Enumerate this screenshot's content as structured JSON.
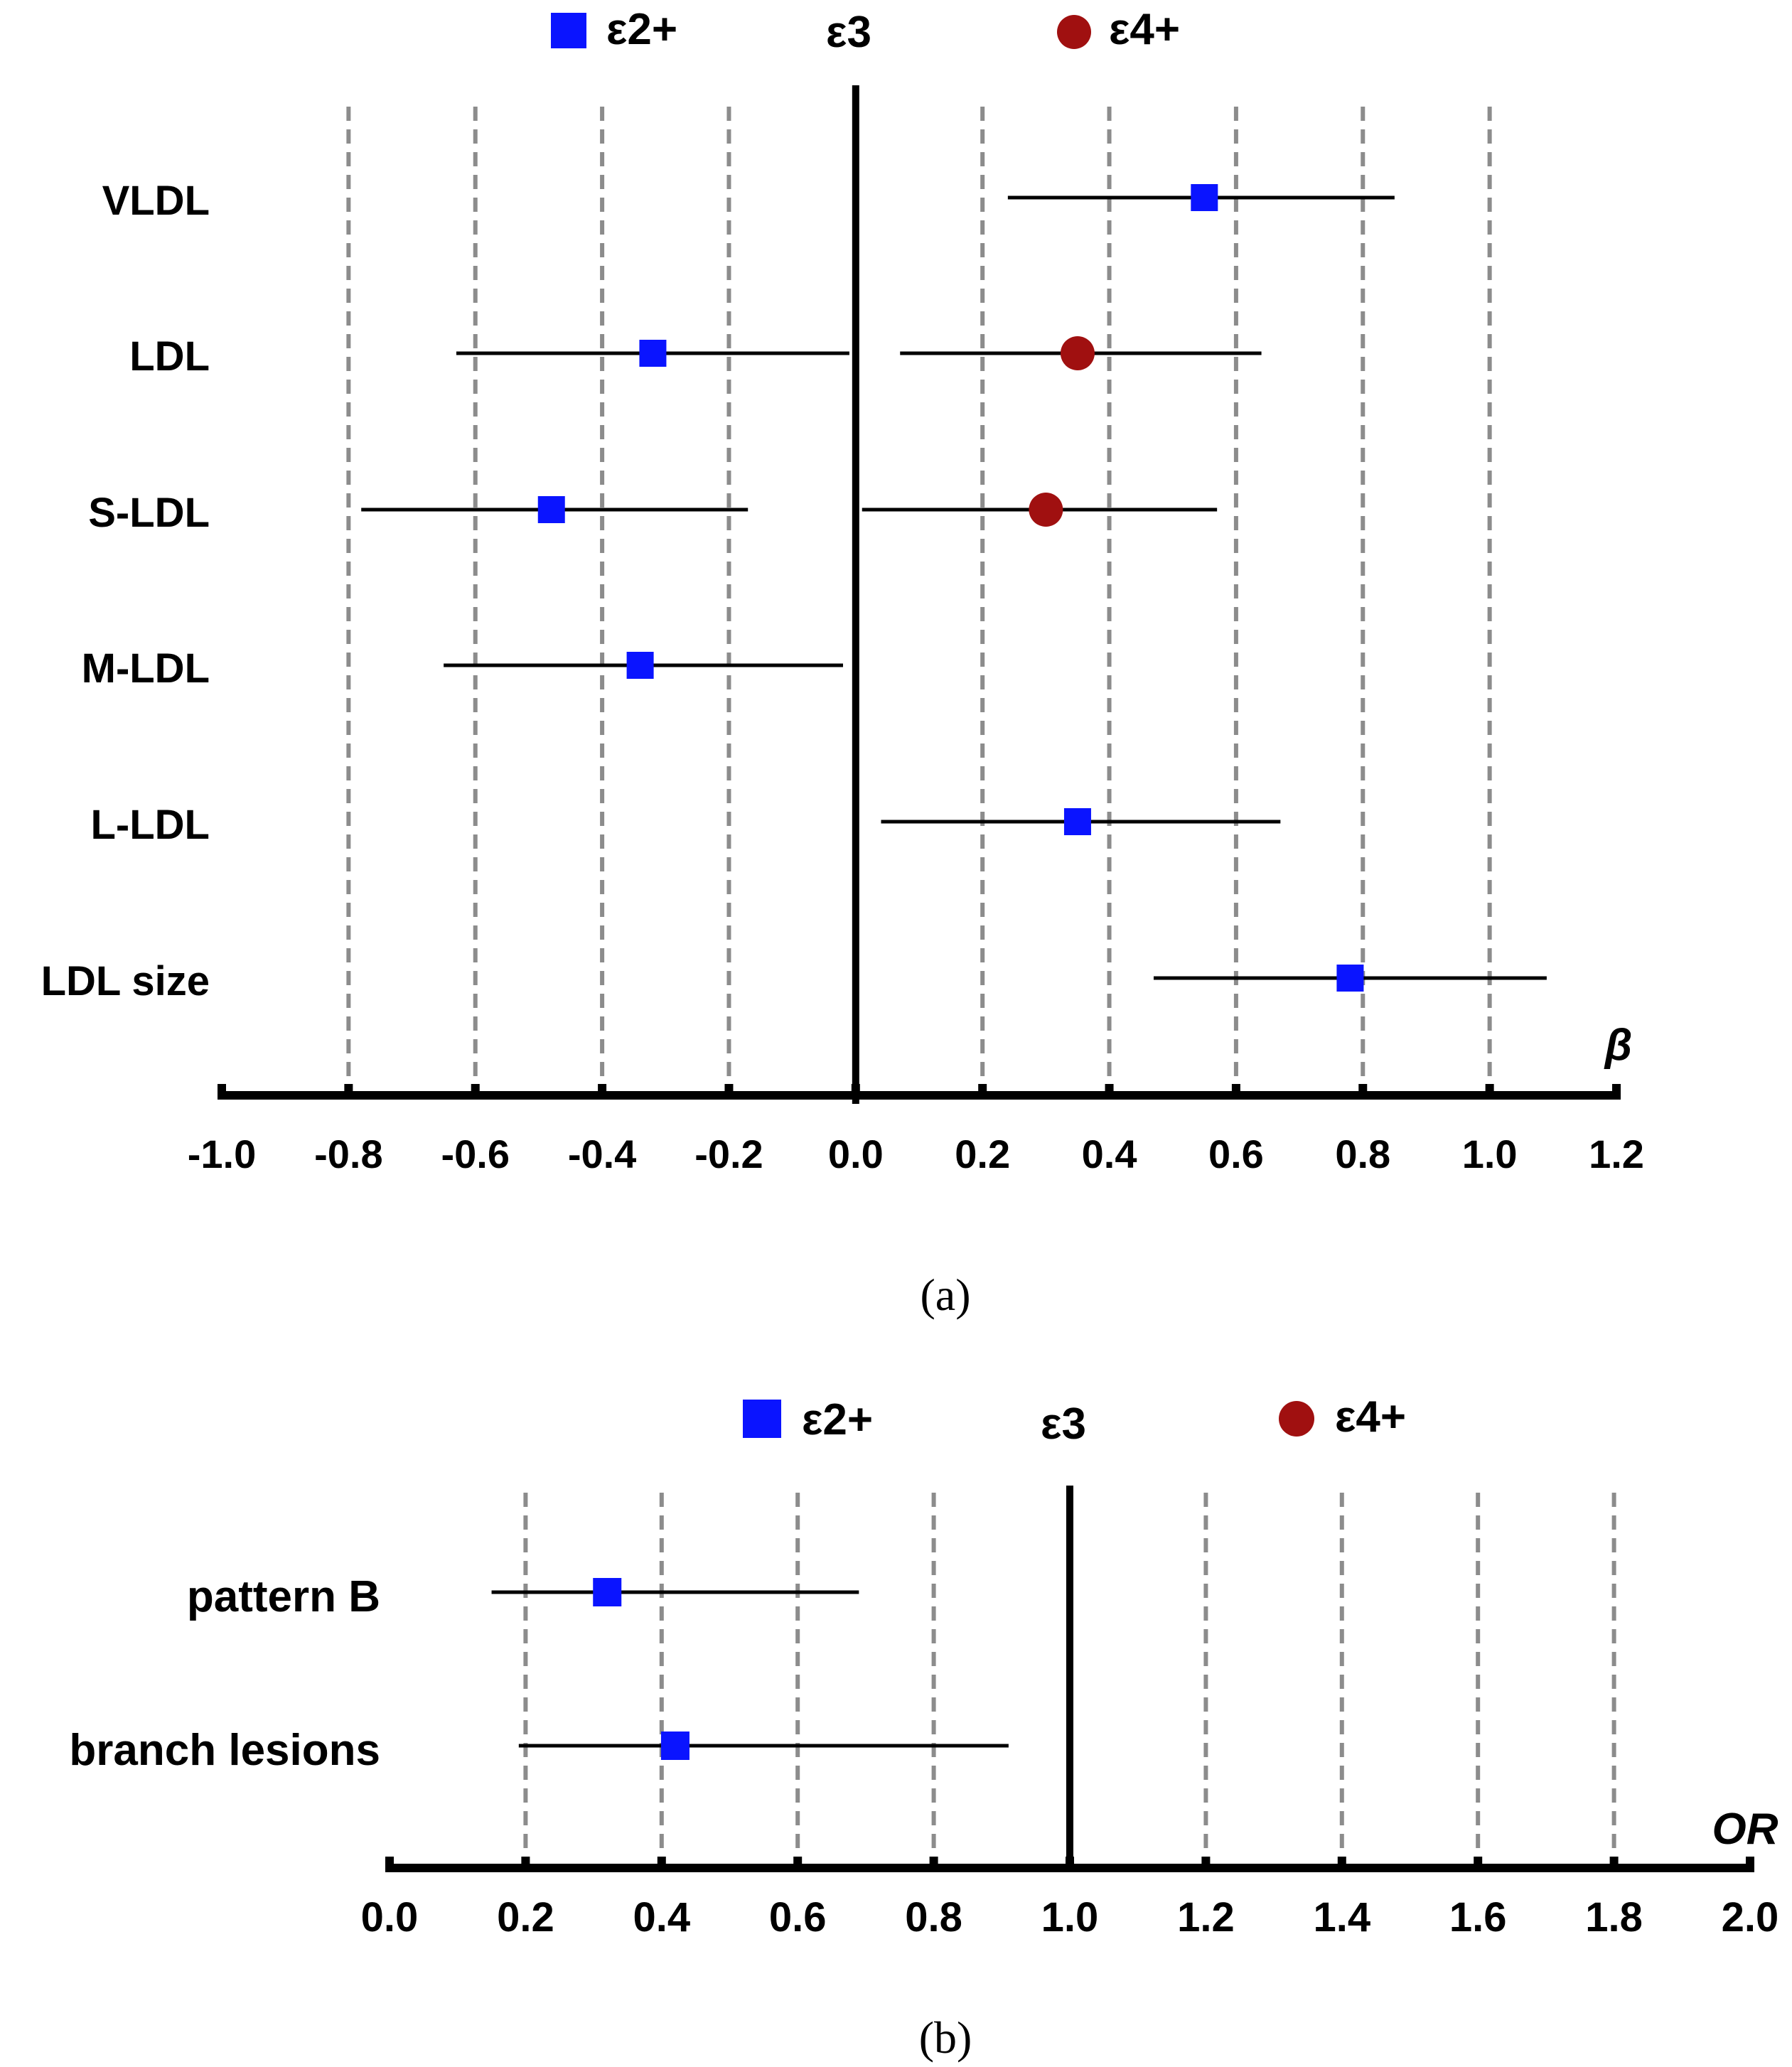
{
  "colors": {
    "e2": "#0a14ff",
    "e4": "#a01010",
    "axis": "#000000",
    "grid": "#8c8c8c"
  },
  "chart_data": [
    {
      "id": "a",
      "type": "forest",
      "caption": "(a)",
      "legend": {
        "e2": "ε2+",
        "ref": "ε3",
        "e4": "ε4+"
      },
      "axis_label": "β",
      "xlim": [
        -1.0,
        1.2
      ],
      "reference": 0.0,
      "ticks": [
        -1.0,
        -0.8,
        -0.6,
        -0.4,
        -0.2,
        0.0,
        0.2,
        0.4,
        0.6,
        0.8,
        1.0,
        1.2
      ],
      "tick_labels": [
        "-1.0",
        "-0.8",
        "-0.6",
        "-0.4",
        "-0.2",
        "0.0",
        "0.2",
        "0.4",
        "0.6",
        "0.8",
        "1.0",
        "1.2"
      ],
      "gridlines": [
        -0.8,
        -0.6,
        -0.4,
        -0.2,
        0.2,
        0.4,
        0.6,
        0.8,
        1.0
      ],
      "rows": [
        {
          "label": "VLDL",
          "points": [
            {
              "group": "e2",
              "value": 0.55,
              "low": 0.24,
              "high": 0.85
            }
          ]
        },
        {
          "label": "LDL",
          "points": [
            {
              "group": "e2",
              "value": -0.32,
              "low": -0.63,
              "high": -0.01
            },
            {
              "group": "e4",
              "value": 0.35,
              "low": 0.07,
              "high": 0.64
            }
          ]
        },
        {
          "label": "S-LDL",
          "points": [
            {
              "group": "e2",
              "value": -0.48,
              "low": -0.78,
              "high": -0.17
            },
            {
              "group": "e4",
              "value": 0.3,
              "low": 0.01,
              "high": 0.57
            }
          ]
        },
        {
          "label": "M-LDL",
          "points": [
            {
              "group": "e2",
              "value": -0.34,
              "low": -0.65,
              "high": -0.02
            }
          ]
        },
        {
          "label": "L-LDL",
          "points": [
            {
              "group": "e2",
              "value": 0.35,
              "low": 0.04,
              "high": 0.67
            }
          ]
        },
        {
          "label": "LDL size",
          "points": [
            {
              "group": "e2",
              "value": 0.78,
              "low": 0.47,
              "high": 1.09
            }
          ]
        }
      ]
    },
    {
      "id": "b",
      "type": "forest",
      "caption": "(b)",
      "legend": {
        "e2": "ε2+",
        "ref": "ε3",
        "e4": "ε4+"
      },
      "axis_label": "OR",
      "xlim": [
        0.0,
        2.0
      ],
      "reference": 1.0,
      "ticks": [
        0.0,
        0.2,
        0.4,
        0.6,
        0.8,
        1.0,
        1.2,
        1.4,
        1.6,
        1.8,
        2.0
      ],
      "tick_labels": [
        "0.0",
        "0.2",
        "0.4",
        "0.6",
        "0.8",
        "1.0",
        "1.2",
        "1.4",
        "1.6",
        "1.8",
        "2.0"
      ],
      "gridlines": [
        0.2,
        0.4,
        0.6,
        0.8,
        1.2,
        1.4,
        1.6,
        1.8
      ],
      "rows": [
        {
          "label": "pattern B",
          "points": [
            {
              "group": "e2",
              "value": 0.32,
              "low": 0.15,
              "high": 0.69
            }
          ]
        },
        {
          "label": "branch lesions",
          "points": [
            {
              "group": "e2",
              "value": 0.42,
              "low": 0.19,
              "high": 0.91
            }
          ]
        }
      ]
    }
  ]
}
